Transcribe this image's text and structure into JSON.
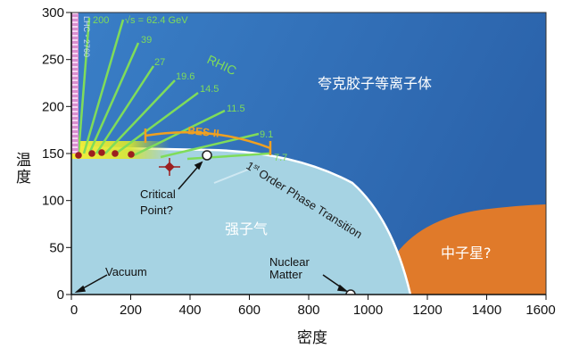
{
  "axes": {
    "ylabel": "温度",
    "xlabel": "密度",
    "yticks": [
      "300",
      "250",
      "200",
      "150",
      "100",
      "50",
      "0"
    ],
    "xticks": [
      "0",
      "200",
      "400",
      "600",
      "800",
      "1000",
      "1200",
      "1400",
      "1600"
    ]
  },
  "regions": {
    "qgp": "夸克胶子等离子体",
    "hadron_gas": "强子气",
    "neutron_star": "中子星?"
  },
  "labels": {
    "lhc": "LHC - 2760",
    "rhic": "RHIC",
    "bes": "BES-II",
    "first_order_sup": "st",
    "first_order_num": "1",
    "first_order_text": "Order Phase Transition",
    "critical_line1": "Critical",
    "critical_line2": "Point?",
    "vacuum": "Vacuum",
    "nuclear_line1": "Nuclear",
    "nuclear_line2": "Matter"
  },
  "energies": {
    "e200": "200",
    "e624": "√s = 62.4 GeV",
    "e39": "39",
    "e27": "27",
    "e196": "19.6",
    "e145": "14.5",
    "e115": "11.5",
    "e91": "9.1",
    "e77": "7.7"
  },
  "colors": {
    "qgp_blue": "#2f6fbb",
    "hadron_blue": "#a6d3e3",
    "neutron_orange": "#e07a2a",
    "green_lines": "#7fdc5a",
    "bes_orange": "#f0a020",
    "points_red": "#9c1f1f",
    "lhc_pink": "#d98fd0"
  }
}
